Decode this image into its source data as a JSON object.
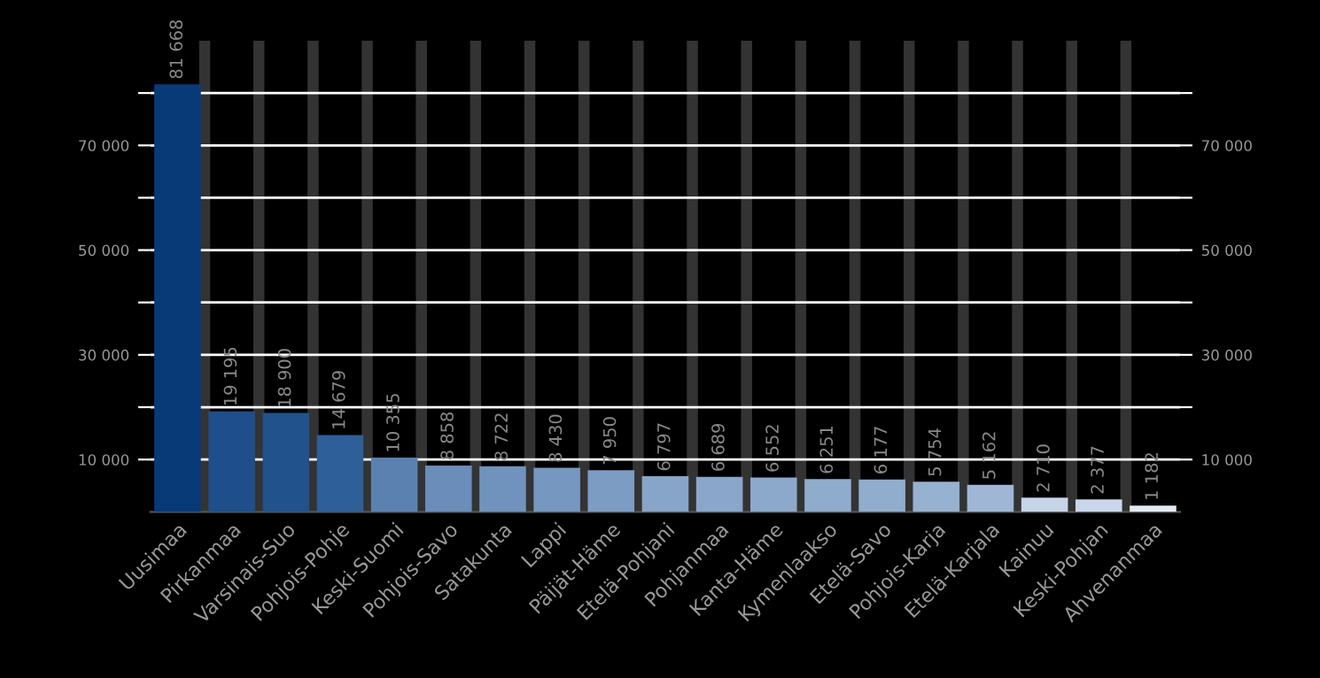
{
  "chart_data": {
    "type": "bar",
    "categories": [
      "Uusimaa",
      "Pirkanmaa",
      "Varsinais-Suo",
      "Pohjois-Pohje",
      "Keski-Suomi",
      "Pohjois-Savo",
      "Satakunta",
      "Lappi",
      "Päijät-Häme",
      "Etelä-Pohjani",
      "Pohjanmaa",
      "Kanta-Häme",
      "Kymenlaakso",
      "Etelä-Savo",
      "Pohjois-Karja",
      "Etelä-Karjala",
      "Kainuu",
      "Keski-Pohjan",
      "Ahvenanmaa"
    ],
    "values": [
      81668,
      19195,
      18900,
      14679,
      10355,
      8858,
      8722,
      8430,
      7950,
      6797,
      6689,
      6552,
      6251,
      6177,
      5754,
      5162,
      2710,
      2377,
      1182
    ],
    "value_labels": [
      "81 668",
      "19 195",
      "18 900",
      "14 679",
      "10 355",
      "8 858",
      "8 722",
      "8 430",
      "7 950",
      "6 797",
      "6 689",
      "6 552",
      "6 251",
      "6 177",
      "5 754",
      "5 162",
      "2 710",
      "2 377",
      "1 182"
    ],
    "colors": [
      "#083a78",
      "#1e4f8a",
      "#21528c",
      "#2e5f98",
      "#5a81b0",
      "#6a8dba",
      "#7093bd",
      "#7597c0",
      "#7d9cc4",
      "#87a5c9",
      "#8aa7cb",
      "#8ca9cc",
      "#90accd",
      "#91adce",
      "#97b1d1",
      "#9fb7d5",
      "#c7d4e8",
      "#cad7ea",
      "#e4eaf4"
    ],
    "ylim": [
      0,
      90000
    ],
    "yticks": [
      {
        "value": 10000,
        "label": "10 000"
      },
      {
        "value": 20000,
        "label": null
      },
      {
        "value": 30000,
        "label": "30 000"
      },
      {
        "value": 40000,
        "label": null
      },
      {
        "value": 50000,
        "label": "50 000"
      },
      {
        "value": 60000,
        "label": null
      },
      {
        "value": 70000,
        "label": "70 000"
      },
      {
        "value": 80000,
        "label": null
      }
    ],
    "y2lim": [
      0,
      90000
    ],
    "y2ticks": [
      {
        "value": 10000,
        "label": "10 000"
      },
      {
        "value": 20000,
        "label": null
      },
      {
        "value": 30000,
        "label": "30 000"
      },
      {
        "value": 40000,
        "label": null
      },
      {
        "value": 50000,
        "label": "50 000"
      },
      {
        "value": 60000,
        "label": null
      },
      {
        "value": 70000,
        "label": "70 000"
      },
      {
        "value": 80000,
        "label": null
      }
    ],
    "grid": true
  }
}
